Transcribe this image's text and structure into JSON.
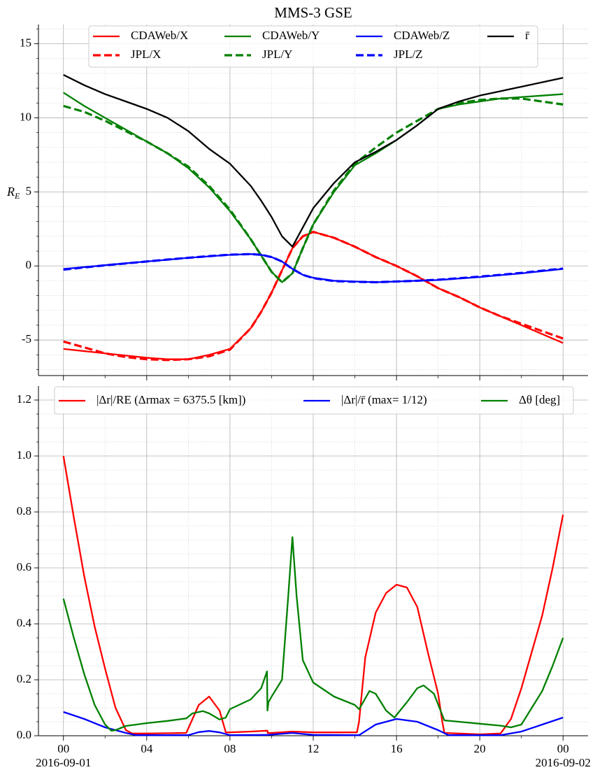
{
  "chart_data": [
    {
      "type": "line",
      "title": "MMS-3 GSE",
      "ylabel": [
        "R",
        "E"
      ],
      "x": [
        0,
        1,
        2,
        3,
        4,
        5,
        6,
        7,
        8,
        9,
        9.5,
        10,
        10.5,
        11,
        11.5,
        12,
        13,
        14,
        15,
        16,
        17,
        18,
        19,
        20,
        21,
        22,
        23,
        24
      ],
      "series": [
        {
          "name": "CDAWeb/X",
          "color": "#ff0000",
          "dashed": false,
          "values": [
            -5.6,
            -5.75,
            -5.9,
            -6.05,
            -6.2,
            -6.3,
            -6.3,
            -6.0,
            -5.6,
            -4.2,
            -3.1,
            -1.8,
            -0.3,
            1.2,
            2.0,
            2.3,
            1.9,
            1.3,
            0.6,
            0.0,
            -0.7,
            -1.5,
            -2.1,
            -2.8,
            -3.4,
            -4.0,
            -4.6,
            -5.2
          ]
        },
        {
          "name": "JPL/X",
          "color": "#ff0000",
          "dashed": true,
          "values": [
            -5.1,
            -5.5,
            -5.9,
            -6.15,
            -6.3,
            -6.35,
            -6.3,
            -6.1,
            -5.65,
            -4.2,
            -3.1,
            -1.8,
            -0.3,
            1.2,
            2.0,
            2.3,
            1.9,
            1.3,
            0.6,
            0.0,
            -0.7,
            -1.5,
            -2.1,
            -2.8,
            -3.4,
            -3.9,
            -4.4,
            -4.9
          ]
        },
        {
          "name": "CDAWeb/Y",
          "color": "#008000",
          "dashed": false,
          "values": [
            11.7,
            10.8,
            10.0,
            9.2,
            8.4,
            7.6,
            6.6,
            5.3,
            3.7,
            1.8,
            0.7,
            -0.4,
            -1.1,
            -0.5,
            1.2,
            2.8,
            5.0,
            6.8,
            7.6,
            8.5,
            9.5,
            10.6,
            10.9,
            11.1,
            11.3,
            11.4,
            11.5,
            11.6
          ]
        },
        {
          "name": "JPL/Y",
          "color": "#008000",
          "dashed": true,
          "values": [
            10.8,
            10.4,
            9.8,
            9.1,
            8.4,
            7.6,
            6.7,
            5.4,
            3.8,
            1.8,
            0.7,
            -0.4,
            -1.1,
            -0.5,
            1.2,
            2.8,
            5.1,
            6.9,
            8.0,
            9.0,
            9.8,
            10.6,
            11.0,
            11.2,
            11.3,
            11.3,
            11.1,
            10.9
          ]
        },
        {
          "name": "CDAWeb/Z",
          "color": "#0000ff",
          "dashed": false,
          "values": [
            -0.2,
            -0.08,
            0.05,
            0.18,
            0.3,
            0.42,
            0.55,
            0.65,
            0.75,
            0.8,
            0.75,
            0.6,
            0.3,
            -0.2,
            -0.6,
            -0.8,
            -1.0,
            -1.05,
            -1.1,
            -1.05,
            -1.0,
            -0.95,
            -0.85,
            -0.75,
            -0.62,
            -0.5,
            -0.35,
            -0.2
          ]
        },
        {
          "name": "JPL/Z",
          "color": "#0000ff",
          "dashed": true,
          "values": [
            -0.25,
            -0.1,
            0.04,
            0.17,
            0.3,
            0.43,
            0.55,
            0.66,
            0.76,
            0.8,
            0.75,
            0.6,
            0.3,
            -0.2,
            -0.6,
            -0.82,
            -1.02,
            -1.07,
            -1.1,
            -1.05,
            -1.0,
            -0.93,
            -0.83,
            -0.72,
            -0.6,
            -0.47,
            -0.32,
            -0.18
          ]
        },
        {
          "name": "r̄",
          "color": "#000000",
          "dashed": false,
          "values": [
            12.9,
            12.2,
            11.6,
            11.1,
            10.6,
            10.0,
            9.1,
            7.9,
            6.9,
            5.4,
            4.4,
            3.3,
            2.0,
            1.3,
            2.6,
            3.9,
            5.6,
            7.0,
            7.7,
            8.5,
            9.5,
            10.6,
            11.1,
            11.5,
            11.8,
            12.1,
            12.4,
            12.7
          ]
        }
      ],
      "xlim": [
        -1.2,
        25.2
      ],
      "xticks": [
        0,
        4,
        8,
        12,
        16,
        20,
        24
      ],
      "minor_xticks": [
        2,
        6,
        10,
        14,
        18,
        22
      ],
      "ylim": [
        -7.4,
        16.3
      ],
      "yticks": [
        -5,
        0,
        5,
        10,
        15
      ],
      "minor_yticks": [
        -7,
        -6,
        -4,
        -3,
        -2,
        -1,
        1,
        2,
        3,
        4,
        6,
        7,
        8,
        9,
        11,
        12,
        13,
        14,
        16
      ],
      "grid": true,
      "legend": "upper center"
    },
    {
      "type": "line",
      "series": [
        {
          "name": "|Δr|/RE (Δrmax = 6375.5 [km])",
          "color": "#ff0000",
          "dashed": false,
          "x": [
            0,
            0.5,
            1,
            1.5,
            2,
            2.5,
            3,
            3.3,
            4,
            5,
            5.9,
            6.5,
            7,
            7.5,
            7.8,
            8,
            9,
            9.8,
            9.81,
            10,
            11,
            12,
            14.1,
            14.2,
            14.5,
            15,
            15.5,
            16,
            16.5,
            17,
            17.5,
            18,
            18.2,
            18.3,
            19,
            20,
            21,
            21.5,
            22,
            22.5,
            23,
            23.5,
            24
          ],
          "values": [
            1.0,
            0.78,
            0.57,
            0.39,
            0.24,
            0.1,
            0.02,
            0.008,
            0.008,
            0.009,
            0.01,
            0.11,
            0.14,
            0.09,
            0.012,
            0.012,
            0.015,
            0.018,
            0.01,
            0.01,
            0.015,
            0.012,
            0.012,
            0.05,
            0.28,
            0.44,
            0.51,
            0.54,
            0.53,
            0.46,
            0.3,
            0.15,
            0.05,
            0.01,
            0.008,
            0.005,
            0.008,
            0.06,
            0.17,
            0.3,
            0.43,
            0.6,
            0.79
          ]
        },
        {
          "name": "|Δr|/r̄  (max= 1/12)",
          "color": "#0000ff",
          "dashed": false,
          "x": [
            0,
            1,
            2,
            3,
            3.5,
            6,
            6.5,
            7,
            7.5,
            8,
            9.8,
            11,
            12,
            14.2,
            15,
            16,
            17,
            18,
            18.5,
            21,
            22,
            23,
            24
          ],
          "values": [
            0.085,
            0.06,
            0.03,
            0.01,
            0.002,
            0.002,
            0.013,
            0.017,
            0.012,
            0.002,
            0.003,
            0.01,
            0.003,
            0.002,
            0.04,
            0.06,
            0.05,
            0.02,
            0.002,
            0.002,
            0.015,
            0.04,
            0.065
          ]
        },
        {
          "name": "Δθ [deg]",
          "color": "#008000",
          "dashed": false,
          "x": [
            0,
            0.5,
            1,
            1.5,
            2,
            2.3,
            2.5,
            3,
            4,
            5,
            5.9,
            6.2,
            6.7,
            7,
            7.5,
            7.8,
            8,
            9,
            9.5,
            9.78,
            9.8,
            9.85,
            10,
            10.5,
            10.8,
            11,
            11.2,
            11.5,
            12,
            13,
            14,
            14.2,
            14.4,
            14.7,
            15,
            15.5,
            15.9,
            16.5,
            17,
            17.3,
            17.8,
            18.3,
            19,
            20,
            21,
            21.5,
            22,
            22.5,
            23,
            23.5,
            24
          ],
          "values": [
            0.49,
            0.35,
            0.22,
            0.11,
            0.04,
            0.018,
            0.02,
            0.035,
            0.045,
            0.053,
            0.062,
            0.08,
            0.088,
            0.08,
            0.058,
            0.065,
            0.095,
            0.13,
            0.17,
            0.23,
            0.09,
            0.12,
            0.14,
            0.2,
            0.5,
            0.71,
            0.5,
            0.27,
            0.19,
            0.14,
            0.11,
            0.095,
            0.12,
            0.16,
            0.15,
            0.09,
            0.065,
            0.12,
            0.17,
            0.18,
            0.15,
            0.055,
            0.05,
            0.043,
            0.036,
            0.03,
            0.04,
            0.1,
            0.16,
            0.25,
            0.35
          ]
        }
      ],
      "xlim": [
        -1.2,
        25.2
      ],
      "xticks": [
        {
          "value": 0,
          "label": "00"
        },
        {
          "value": 4,
          "label": "04"
        },
        {
          "value": 8,
          "label": "08"
        },
        12,
        16,
        20,
        {
          "value": 24,
          "label": "00"
        }
      ],
      "xtick_sublabels": [
        {
          "value": 0,
          "label": "2016-09-01"
        },
        {
          "value": 24,
          "label": "2016-09-02"
        }
      ],
      "minor_xticks": [
        2,
        6,
        10,
        14,
        18,
        22
      ],
      "ylim": [
        0,
        1.25
      ],
      "yticks": [
        {
          "value": 0,
          "label": "0.0"
        },
        0.2,
        0.4,
        0.6,
        0.8,
        {
          "value": 1,
          "label": "1.0"
        },
        1.2
      ],
      "minor_yticks": [
        0.05,
        0.1,
        0.15,
        0.25,
        0.3,
        0.35,
        0.45,
        0.5,
        0.55,
        0.65,
        0.7,
        0.75,
        0.85,
        0.9,
        0.95,
        1.05,
        1.1,
        1.15
      ],
      "grid": true,
      "legend": "upper center"
    }
  ]
}
